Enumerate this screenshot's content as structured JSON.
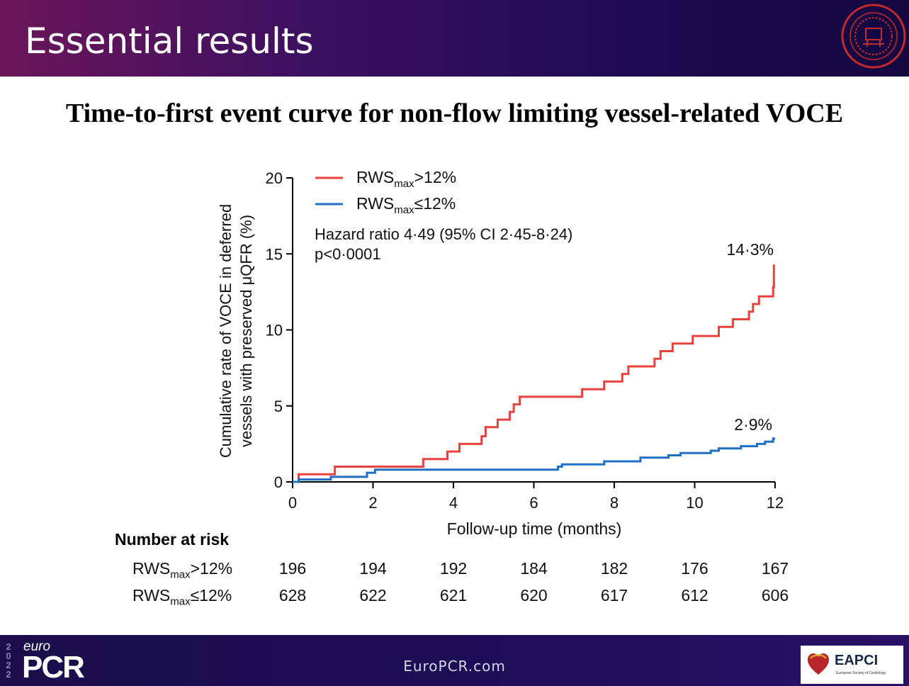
{
  "header": {
    "title": "Essential results"
  },
  "slide": {
    "subtitle": "Time-to-first event curve for non-flow limiting vessel-related VOCE"
  },
  "chart_data": {
    "type": "line",
    "ylabel_line1": "Cumulative rate of VOCE in deferred",
    "ylabel_line2": "vessels with preserved μQFR (%)",
    "xlabel": "Follow-up time (months)",
    "xlim": [
      0,
      12
    ],
    "ylim": [
      0,
      20
    ],
    "x_ticks": [
      "0",
      "2",
      "4",
      "6",
      "8",
      "10",
      "12"
    ],
    "y_ticks": [
      "0",
      "5",
      "10",
      "15",
      "20"
    ],
    "grid": false,
    "legend_position": "top-left",
    "annotation_line1": "Hazard ratio 4·49 (95% CI 2·45-8·24)",
    "annotation_line2": "p<0·0001",
    "series": [
      {
        "name_main": "RWS",
        "name_sub": "max",
        "name_cond": ">12%",
        "color": "#e8423f",
        "end_label": "14·3%",
        "x": [
          0,
          0.15,
          0.15,
          1.05,
          1.05,
          3.25,
          3.25,
          3.85,
          3.85,
          4.15,
          4.15,
          4.7,
          4.7,
          4.8,
          4.8,
          5.1,
          5.1,
          5.4,
          5.4,
          5.5,
          5.5,
          5.65,
          5.65,
          7.2,
          7.2,
          7.75,
          7.75,
          8.2,
          8.2,
          8.35,
          8.35,
          9.0,
          9.0,
          9.15,
          9.15,
          9.45,
          9.45,
          9.95,
          9.95,
          10.6,
          10.6,
          10.95,
          10.95,
          11.35,
          11.35,
          11.45,
          11.45,
          11.6,
          11.6,
          11.95,
          11.95,
          11.97,
          11.97
        ],
        "y": [
          0,
          0,
          0.5,
          0.5,
          1.0,
          1.0,
          1.5,
          1.5,
          2.0,
          2.0,
          2.5,
          2.5,
          3.0,
          3.0,
          3.6,
          3.6,
          4.1,
          4.1,
          4.6,
          4.6,
          5.1,
          5.1,
          5.6,
          5.6,
          6.1,
          6.1,
          6.6,
          6.6,
          7.1,
          7.1,
          7.6,
          7.6,
          8.1,
          8.1,
          8.6,
          8.6,
          9.1,
          9.1,
          9.6,
          9.6,
          10.2,
          10.2,
          10.7,
          10.7,
          11.2,
          11.2,
          11.7,
          11.7,
          12.2,
          12.2,
          12.8,
          12.8,
          14.3
        ]
      },
      {
        "name_main": "RWS",
        "name_sub": "max",
        "name_cond": "≤12%",
        "color": "#1f6fc5",
        "end_label": "2·9%",
        "x": [
          0,
          0.15,
          0.15,
          0.95,
          0.95,
          1.85,
          1.85,
          2.05,
          2.05,
          6.6,
          6.6,
          6.7,
          6.7,
          7.75,
          7.75,
          8.65,
          8.65,
          9.35,
          9.35,
          9.65,
          9.65,
          10.4,
          10.4,
          10.6,
          10.6,
          11.15,
          11.15,
          11.55,
          11.55,
          11.75,
          11.75,
          11.95,
          11.95,
          12.0
        ],
        "y": [
          0,
          0,
          0.16,
          0.16,
          0.33,
          0.33,
          0.6,
          0.6,
          0.8,
          0.8,
          1.0,
          1.0,
          1.15,
          1.15,
          1.35,
          1.35,
          1.6,
          1.6,
          1.75,
          1.75,
          1.9,
          1.9,
          2.05,
          2.05,
          2.2,
          2.2,
          2.35,
          2.35,
          2.5,
          2.5,
          2.65,
          2.65,
          2.85,
          2.85
        ]
      }
    ]
  },
  "risk_table": {
    "title": "Number at risk",
    "rows": [
      {
        "label_main": "RWS",
        "label_sub": "max",
        "label_cond": ">12%",
        "values": [
          "196",
          "194",
          "192",
          "184",
          "182",
          "176",
          "167"
        ]
      },
      {
        "label_main": "RWS",
        "label_sub": "max",
        "label_cond": "≤12%",
        "values": [
          "628",
          "622",
          "621",
          "620",
          "617",
          "612",
          "606"
        ]
      }
    ]
  },
  "footer": {
    "year_digits": [
      "2",
      "0",
      "2",
      "2"
    ],
    "euro": "euro",
    "pcr": "PCR",
    "url": "EuroPCR.com",
    "eapci": "EAPCI",
    "eapci_sub": "European Society of Cardiology"
  },
  "colors": {
    "red_series": "#e8423f",
    "blue_series": "#1f6fc5"
  }
}
